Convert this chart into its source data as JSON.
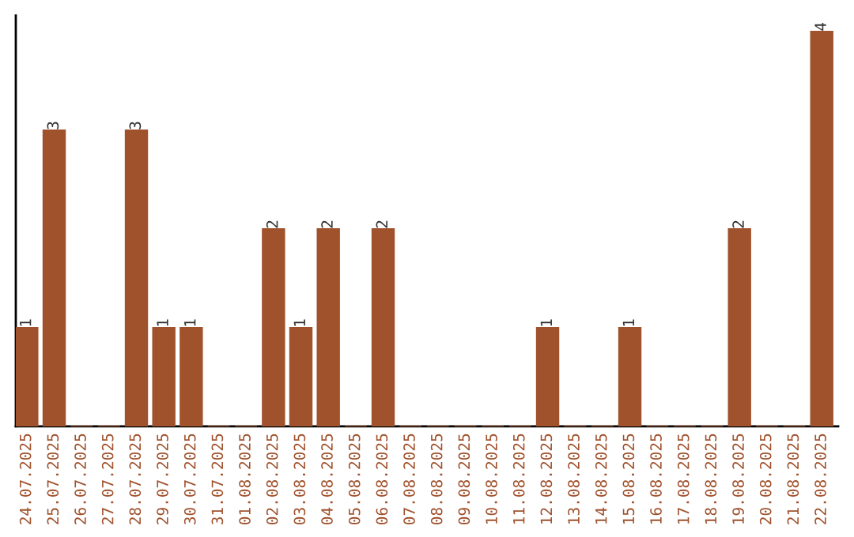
{
  "chart_data": {
    "type": "bar",
    "categories": [
      "24.07.2025",
      "25.07.2025",
      "26.07.2025",
      "27.07.2025",
      "28.07.2025",
      "29.07.2025",
      "30.07.2025",
      "31.07.2025",
      "01.08.2025",
      "02.08.2025",
      "03.08.2025",
      "04.08.2025",
      "05.08.2025",
      "06.08.2025",
      "07.08.2025",
      "08.08.2025",
      "09.08.2025",
      "10.08.2025",
      "11.08.2025",
      "12.08.2025",
      "13.08.2025",
      "14.08.2025",
      "15.08.2025",
      "16.08.2025",
      "17.08.2025",
      "18.08.2025",
      "19.08.2025",
      "20.08.2025",
      "21.08.2025",
      "22.08.2025"
    ],
    "values": [
      1,
      3,
      0,
      0,
      3,
      1,
      1,
      0,
      0,
      2,
      1,
      2,
      0,
      2,
      0,
      0,
      0,
      0,
      0,
      1,
      0,
      0,
      1,
      0,
      0,
      0,
      2,
      0,
      0,
      4
    ],
    "value_labels": [
      "1",
      "3",
      null,
      null,
      "3",
      "1",
      "1",
      null,
      null,
      "2",
      "1",
      "2",
      null,
      "2",
      null,
      null,
      null,
      null,
      null,
      "1",
      null,
      null,
      "1",
      null,
      null,
      null,
      "2",
      null,
      null,
      "4"
    ],
    "color": "#a0522d",
    "ylim": [
      0,
      4.16
    ],
    "grid": false,
    "legend": false
  }
}
